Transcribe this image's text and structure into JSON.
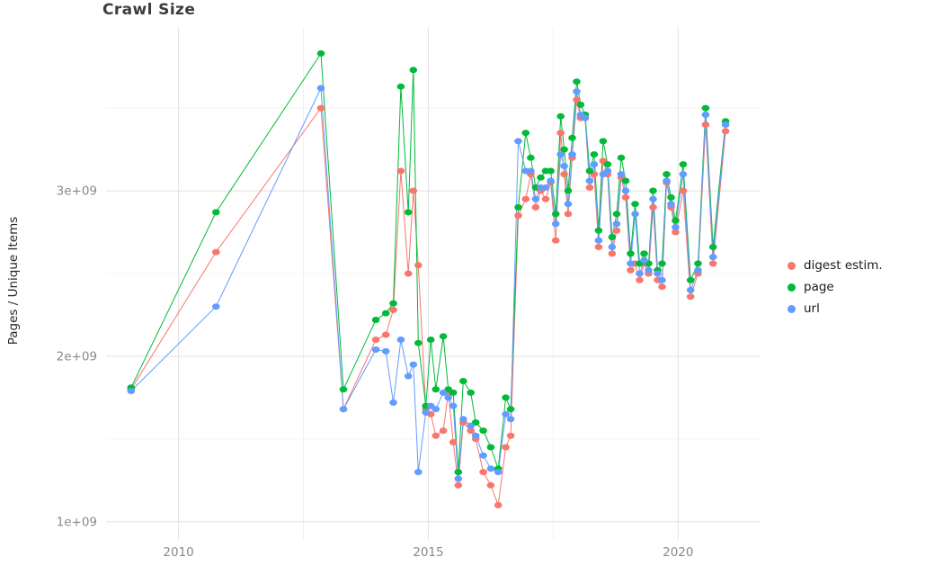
{
  "chart_data": {
    "type": "line",
    "title": "Crawl Size",
    "xlabel": "",
    "ylabel": "Pages / Unique Items",
    "unit": "values in billions (1e9) of pages / unique items",
    "x_unit": "year",
    "xlim": [
      2008.55,
      2021.65
    ],
    "ylim": [
      0.89,
      3.99
    ],
    "x_ticks": [
      2010,
      2015,
      2020
    ],
    "x_tick_labels": [
      "2010",
      "2015",
      "2020"
    ],
    "y_ticks": [
      1,
      2,
      3
    ],
    "y_tick_labels": [
      "1e+09",
      "2e+09",
      "3e+09"
    ],
    "grid": {
      "on": true,
      "x_minor": [
        2012.5,
        2017.5
      ],
      "y_minor": [
        1.5,
        2.5,
        3.5
      ]
    },
    "legend_position": "right",
    "x": [
      2009.05,
      2010.75,
      2012.85,
      2013.3,
      2013.95,
      2014.15,
      2014.3,
      2014.45,
      2014.6,
      2014.7,
      2014.8,
      2014.95,
      2015.05,
      2015.15,
      2015.3,
      2015.4,
      2015.5,
      2015.6,
      2015.7,
      2015.85,
      2015.95,
      2016.1,
      2016.25,
      2016.4,
      2016.55,
      2016.65,
      2016.8,
      2016.95,
      2017.05,
      2017.15,
      2017.25,
      2017.35,
      2017.45,
      2017.55,
      2017.65,
      2017.72,
      2017.8,
      2017.88,
      2017.97,
      2018.05,
      2018.14,
      2018.23,
      2018.32,
      2018.41,
      2018.5,
      2018.59,
      2018.68,
      2018.77,
      2018.86,
      2018.95,
      2019.05,
      2019.14,
      2019.23,
      2019.32,
      2019.41,
      2019.5,
      2019.59,
      2019.68,
      2019.77,
      2019.86,
      2019.95,
      2020.1,
      2020.25,
      2020.4,
      2020.55,
      2020.7,
      2020.95
    ],
    "series": [
      {
        "id": "digest",
        "name": "digest estim.",
        "color": "#F8766D",
        "values": [
          1.8,
          2.63,
          3.5,
          1.68,
          2.1,
          2.13,
          2.28,
          3.12,
          2.5,
          3.0,
          2.55,
          1.68,
          1.65,
          1.52,
          1.55,
          1.78,
          1.48,
          1.22,
          1.6,
          1.55,
          1.5,
          1.3,
          1.22,
          1.1,
          1.45,
          1.52,
          2.85,
          2.95,
          3.1,
          2.9,
          3.0,
          2.95,
          3.05,
          2.7,
          3.35,
          3.1,
          2.86,
          3.2,
          3.55,
          3.44,
          3.44,
          3.02,
          3.1,
          2.66,
          3.18,
          3.1,
          2.62,
          2.76,
          3.08,
          2.96,
          2.52,
          2.56,
          2.46,
          2.56,
          2.5,
          2.9,
          2.46,
          2.42,
          3.05,
          2.9,
          2.75,
          3.0,
          2.36,
          2.5,
          3.4,
          2.56,
          3.36
        ]
      },
      {
        "id": "page",
        "name": "page",
        "color": "#00BA38",
        "values": [
          1.81,
          2.87,
          3.83,
          1.8,
          2.22,
          2.26,
          2.32,
          3.63,
          2.87,
          3.73,
          2.08,
          1.7,
          2.1,
          1.8,
          2.12,
          1.8,
          1.78,
          1.3,
          1.85,
          1.78,
          1.6,
          1.55,
          1.45,
          1.32,
          1.75,
          1.68,
          2.9,
          3.35,
          3.2,
          3.02,
          3.08,
          3.12,
          3.12,
          2.86,
          3.45,
          3.25,
          3.0,
          3.32,
          3.66,
          3.52,
          3.46,
          3.12,
          3.22,
          2.76,
          3.3,
          3.16,
          2.72,
          2.86,
          3.2,
          3.06,
          2.62,
          2.92,
          2.56,
          2.62,
          2.56,
          3.0,
          2.52,
          2.56,
          3.1,
          2.96,
          2.82,
          3.16,
          2.46,
          2.56,
          3.5,
          2.66,
          3.42
        ]
      },
      {
        "id": "url",
        "name": "url",
        "color": "#619CFF",
        "values": [
          1.79,
          2.3,
          3.62,
          1.68,
          2.04,
          2.03,
          1.72,
          2.1,
          1.88,
          1.95,
          1.3,
          1.66,
          1.7,
          1.68,
          1.78,
          1.75,
          1.7,
          1.26,
          1.62,
          1.58,
          1.52,
          1.4,
          1.32,
          1.3,
          1.65,
          1.62,
          3.3,
          3.12,
          3.12,
          2.95,
          3.02,
          3.02,
          3.06,
          2.8,
          3.22,
          3.15,
          2.92,
          3.22,
          3.6,
          3.46,
          3.44,
          3.06,
          3.16,
          2.7,
          3.1,
          3.12,
          2.66,
          2.8,
          3.1,
          3.0,
          2.56,
          2.86,
          2.5,
          2.58,
          2.52,
          2.95,
          2.5,
          2.46,
          3.06,
          2.92,
          2.78,
          3.1,
          2.4,
          2.52,
          3.46,
          2.6,
          3.4
        ]
      }
    ]
  }
}
